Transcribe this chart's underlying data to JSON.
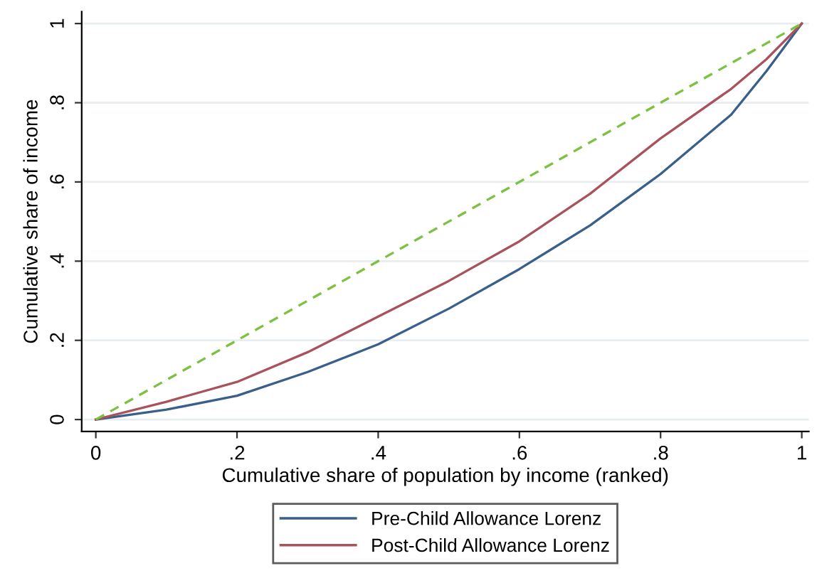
{
  "chart_data": {
    "type": "line",
    "xlabel": "Cumulative share of population by income (ranked)",
    "ylabel": "Cumulative share of income",
    "xlim": [
      -0.02,
      1.01
    ],
    "ylim": [
      -0.03,
      1.03
    ],
    "xticks": [
      0,
      {
        "value": 0.2,
        "label": ".2"
      },
      {
        "value": 0.4,
        "label": ".4"
      },
      {
        "value": 0.6,
        "label": ".6"
      },
      {
        "value": 0.8,
        "label": ".8"
      },
      1
    ],
    "yticks": [
      0,
      {
        "value": 0.2,
        "label": ".2"
      },
      {
        "value": 0.4,
        "label": ".4"
      },
      {
        "value": 0.6,
        "label": ".6"
      },
      {
        "value": 0.8,
        "label": ".8"
      },
      1
    ],
    "grid": "y",
    "legend": "bottom",
    "marker": "none",
    "series": [
      {
        "name": "Pre-Child Allowance Lorenz",
        "color": "#3a5f8a",
        "x": [
          0,
          0.1,
          0.2,
          0.3,
          0.4,
          0.5,
          0.6,
          0.7,
          0.8,
          0.9,
          0.95,
          1
        ],
        "values": [
          0,
          0.025,
          0.06,
          0.12,
          0.19,
          0.28,
          0.38,
          0.49,
          0.62,
          0.77,
          0.88,
          1
        ]
      },
      {
        "name": "Post-Child Allowance Lorenz",
        "color": "#a8535c",
        "x": [
          0,
          0.1,
          0.2,
          0.3,
          0.4,
          0.5,
          0.6,
          0.7,
          0.8,
          0.9,
          0.95,
          1
        ],
        "values": [
          0,
          0.045,
          0.095,
          0.17,
          0.26,
          0.35,
          0.45,
          0.57,
          0.71,
          0.835,
          0.91,
          1
        ]
      },
      {
        "color": "#7dc142",
        "line_style": "dashed",
        "x": [
          0,
          1
        ],
        "values": [
          0,
          1
        ]
      }
    ]
  }
}
